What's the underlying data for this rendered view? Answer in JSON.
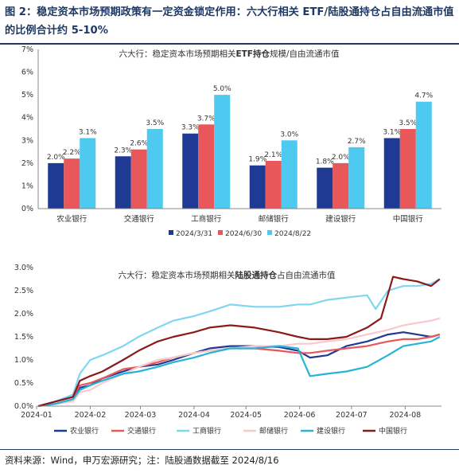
{
  "figure": {
    "title": "图 2：稳定资本市场预期政策有一定资金锁定作用：六大行相关 ETF/陆股通持仓占自由流通市值的比例合计约 5-10%",
    "source": "资料来源：Wind，申万宏源研究；注：陆股通数据截至 2024/8/16"
  },
  "chart_data": [
    {
      "type": "bar",
      "title_prefix": "六大行：稳定资本市场预期相关",
      "title_bold": "ETF持仓",
      "title_suffix": "规模/自由流通市值",
      "categories": [
        "农业银行",
        "交通银行",
        "工商银行",
        "邮储银行",
        "建设银行",
        "中国银行"
      ],
      "series": [
        {
          "name": "2024/3/31",
          "values": [
            2.0,
            2.3,
            3.3,
            1.9,
            1.8,
            3.1
          ],
          "color": "#1f3a93"
        },
        {
          "name": "2024/6/30",
          "values": [
            2.2,
            2.6,
            3.7,
            2.1,
            2.0,
            3.5
          ],
          "color": "#e8585a"
        },
        {
          "name": "2024/8/22",
          "values": [
            3.1,
            3.5,
            5.0,
            3.0,
            2.7,
            4.7
          ],
          "color": "#4ec9f0"
        }
      ],
      "value_labels": [
        [
          "2.0%",
          "2.3%",
          "3.3%",
          "1.9%",
          "1.8%",
          "3.1%"
        ],
        [
          "2.2%",
          "2.6%",
          "3.7%",
          "2.1%",
          "2.0%",
          "3.5%"
        ],
        [
          "3.1%",
          "3.5%",
          "5.0%",
          "3.0%",
          "2.7%",
          "4.7%"
        ]
      ],
      "ylim": [
        0,
        7
      ],
      "yticks": [
        "0%",
        "1%",
        "2%",
        "3%",
        "4%",
        "5%",
        "6%",
        "7%"
      ],
      "grid": false,
      "legend_position": "bottom"
    },
    {
      "type": "line",
      "title_prefix": "六大行：稳定资本市场预期相关",
      "title_bold": "陆股通持仓",
      "title_suffix": "占自由流通市值",
      "x_start": "2024-01-01",
      "x_end": "2024-08-22",
      "xticks": [
        "2024-01",
        "2024-02",
        "2024-03",
        "2024-04",
        "2024-05",
        "2024-06",
        "2024-07",
        "2024-08"
      ],
      "ylim": [
        0,
        3.0
      ],
      "yticks": [
        "0.0%",
        "0.5%",
        "1.0%",
        "1.5%",
        "2.0%",
        "2.5%",
        "3.0%"
      ],
      "grid": false,
      "legend_position": "bottom",
      "series": [
        {
          "name": "农业银行",
          "color": "#1f3a93",
          "points": [
            [
              "2024-01-02",
              0.0
            ],
            [
              "2024-01-12",
              0.05
            ],
            [
              "2024-01-22",
              0.15
            ],
            [
              "2024-01-26",
              0.4
            ],
            [
              "2024-02-01",
              0.45
            ],
            [
              "2024-02-08",
              0.6
            ],
            [
              "2024-02-20",
              0.75
            ],
            [
              "2024-02-29",
              0.85
            ],
            [
              "2024-03-11",
              0.9
            ],
            [
              "2024-03-20",
              1.0
            ],
            [
              "2024-04-01",
              1.15
            ],
            [
              "2024-04-10",
              1.25
            ],
            [
              "2024-04-22",
              1.3
            ],
            [
              "2024-05-06",
              1.3
            ],
            [
              "2024-05-20",
              1.28
            ],
            [
              "2024-05-31",
              1.2
            ],
            [
              "2024-06-07",
              1.05
            ],
            [
              "2024-06-17",
              1.1
            ],
            [
              "2024-06-28",
              1.3
            ],
            [
              "2024-07-10",
              1.4
            ],
            [
              "2024-07-22",
              1.55
            ],
            [
              "2024-07-31",
              1.6
            ],
            [
              "2024-08-08",
              1.55
            ],
            [
              "2024-08-16",
              1.5
            ],
            [
              "2024-08-21",
              1.55
            ]
          ]
        },
        {
          "name": "交通银行",
          "color": "#e8585a",
          "points": [
            [
              "2024-01-02",
              0.0
            ],
            [
              "2024-01-12",
              0.1
            ],
            [
              "2024-01-22",
              0.2
            ],
            [
              "2024-01-26",
              0.45
            ],
            [
              "2024-02-01",
              0.5
            ],
            [
              "2024-02-08",
              0.6
            ],
            [
              "2024-02-20",
              0.8
            ],
            [
              "2024-02-29",
              0.85
            ],
            [
              "2024-03-11",
              0.95
            ],
            [
              "2024-03-20",
              1.05
            ],
            [
              "2024-04-01",
              1.15
            ],
            [
              "2024-04-10",
              1.2
            ],
            [
              "2024-04-22",
              1.25
            ],
            [
              "2024-05-06",
              1.25
            ],
            [
              "2024-05-20",
              1.2
            ],
            [
              "2024-05-31",
              1.15
            ],
            [
              "2024-06-07",
              1.15
            ],
            [
              "2024-06-17",
              1.2
            ],
            [
              "2024-06-28",
              1.25
            ],
            [
              "2024-07-10",
              1.3
            ],
            [
              "2024-07-22",
              1.4
            ],
            [
              "2024-07-31",
              1.45
            ],
            [
              "2024-08-08",
              1.45
            ],
            [
              "2024-08-16",
              1.5
            ],
            [
              "2024-08-21",
              1.55
            ]
          ]
        },
        {
          "name": "工商银行",
          "color": "#7fd6f2",
          "points": [
            [
              "2024-01-02",
              0.0
            ],
            [
              "2024-01-12",
              0.1
            ],
            [
              "2024-01-22",
              0.25
            ],
            [
              "2024-01-26",
              0.7
            ],
            [
              "2024-02-01",
              1.0
            ],
            [
              "2024-02-08",
              1.1
            ],
            [
              "2024-02-20",
              1.3
            ],
            [
              "2024-02-29",
              1.5
            ],
            [
              "2024-03-11",
              1.7
            ],
            [
              "2024-03-20",
              1.85
            ],
            [
              "2024-04-01",
              1.95
            ],
            [
              "2024-04-10",
              2.05
            ],
            [
              "2024-04-22",
              2.2
            ],
            [
              "2024-05-06",
              2.15
            ],
            [
              "2024-05-20",
              2.15
            ],
            [
              "2024-05-31",
              2.2
            ],
            [
              "2024-06-07",
              2.2
            ],
            [
              "2024-06-17",
              2.3
            ],
            [
              "2024-06-28",
              2.35
            ],
            [
              "2024-07-10",
              2.4
            ],
            [
              "2024-07-15",
              2.1
            ],
            [
              "2024-07-22",
              2.5
            ],
            [
              "2024-07-31",
              2.6
            ],
            [
              "2024-08-08",
              2.6
            ],
            [
              "2024-08-16",
              2.65
            ],
            [
              "2024-08-21",
              2.75
            ]
          ]
        },
        {
          "name": "邮储银行",
          "color": "#f7c9cc",
          "points": [
            [
              "2024-01-02",
              0.0
            ],
            [
              "2024-01-12",
              0.05
            ],
            [
              "2024-01-22",
              0.1
            ],
            [
              "2024-01-26",
              0.3
            ],
            [
              "2024-02-01",
              0.35
            ],
            [
              "2024-02-08",
              0.5
            ],
            [
              "2024-02-20",
              0.7
            ],
            [
              "2024-02-29",
              0.85
            ],
            [
              "2024-03-11",
              1.0
            ],
            [
              "2024-03-20",
              1.05
            ],
            [
              "2024-04-01",
              1.15
            ],
            [
              "2024-04-10",
              1.2
            ],
            [
              "2024-04-22",
              1.25
            ],
            [
              "2024-05-06",
              1.3
            ],
            [
              "2024-05-20",
              1.3
            ],
            [
              "2024-05-31",
              1.35
            ],
            [
              "2024-06-07",
              1.35
            ],
            [
              "2024-06-17",
              1.4
            ],
            [
              "2024-06-28",
              1.45
            ],
            [
              "2024-07-10",
              1.55
            ],
            [
              "2024-07-22",
              1.65
            ],
            [
              "2024-07-31",
              1.75
            ],
            [
              "2024-08-08",
              1.8
            ],
            [
              "2024-08-16",
              1.85
            ],
            [
              "2024-08-21",
              1.9
            ]
          ]
        },
        {
          "name": "建设银行",
          "color": "#27b3d6",
          "points": [
            [
              "2024-01-02",
              0.0
            ],
            [
              "2024-01-12",
              0.05
            ],
            [
              "2024-01-22",
              0.15
            ],
            [
              "2024-01-26",
              0.35
            ],
            [
              "2024-02-01",
              0.45
            ],
            [
              "2024-02-08",
              0.55
            ],
            [
              "2024-02-20",
              0.7
            ],
            [
              "2024-02-29",
              0.75
            ],
            [
              "2024-03-11",
              0.85
            ],
            [
              "2024-03-20",
              0.95
            ],
            [
              "2024-04-01",
              1.05
            ],
            [
              "2024-04-10",
              1.15
            ],
            [
              "2024-04-22",
              1.25
            ],
            [
              "2024-05-06",
              1.25
            ],
            [
              "2024-05-20",
              1.3
            ],
            [
              "2024-05-31",
              1.25
            ],
            [
              "2024-06-07",
              0.65
            ],
            [
              "2024-06-17",
              0.7
            ],
            [
              "2024-06-28",
              0.75
            ],
            [
              "2024-07-10",
              0.85
            ],
            [
              "2024-07-22",
              1.1
            ],
            [
              "2024-07-31",
              1.3
            ],
            [
              "2024-08-08",
              1.35
            ],
            [
              "2024-08-16",
              1.4
            ],
            [
              "2024-08-21",
              1.5
            ]
          ]
        },
        {
          "name": "中国银行",
          "color": "#8b1a1a",
          "points": [
            [
              "2024-01-02",
              0.0
            ],
            [
              "2024-01-12",
              0.1
            ],
            [
              "2024-01-22",
              0.2
            ],
            [
              "2024-01-26",
              0.55
            ],
            [
              "2024-02-01",
              0.65
            ],
            [
              "2024-02-08",
              0.75
            ],
            [
              "2024-02-20",
              1.0
            ],
            [
              "2024-02-29",
              1.2
            ],
            [
              "2024-03-11",
              1.4
            ],
            [
              "2024-03-20",
              1.5
            ],
            [
              "2024-04-01",
              1.6
            ],
            [
              "2024-04-10",
              1.7
            ],
            [
              "2024-04-22",
              1.75
            ],
            [
              "2024-05-06",
              1.7
            ],
            [
              "2024-05-20",
              1.6
            ],
            [
              "2024-05-31",
              1.5
            ],
            [
              "2024-06-07",
              1.45
            ],
            [
              "2024-06-17",
              1.45
            ],
            [
              "2024-06-28",
              1.5
            ],
            [
              "2024-07-10",
              1.7
            ],
            [
              "2024-07-18",
              1.9
            ],
            [
              "2024-07-25",
              2.8
            ],
            [
              "2024-07-31",
              2.75
            ],
            [
              "2024-08-08",
              2.7
            ],
            [
              "2024-08-16",
              2.6
            ],
            [
              "2024-08-21",
              2.75
            ]
          ]
        }
      ]
    }
  ]
}
